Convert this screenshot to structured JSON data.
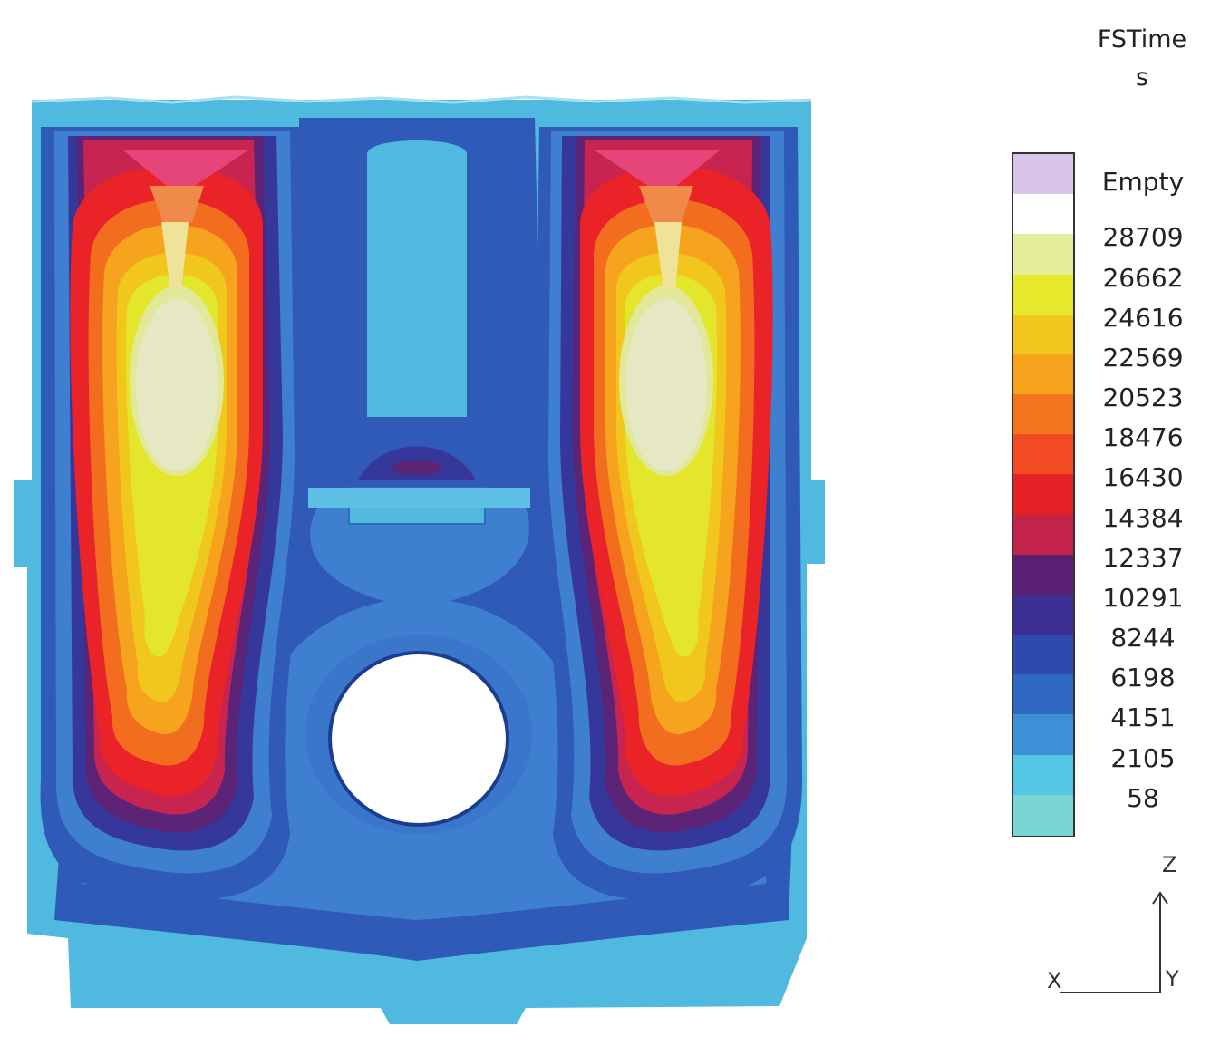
{
  "legend": {
    "title": "FSTime",
    "unit": "s",
    "empty_label": "Empty",
    "values": [
      "28709",
      "26662",
      "24616",
      "22569",
      "20523",
      "18476",
      "16430",
      "14384",
      "12337",
      "10291",
      "8244",
      "6198",
      "4151",
      "2105",
      "58"
    ],
    "colors": [
      "#d9c4ea",
      "#ffffff",
      "#e6ed9a",
      "#e6e82c",
      "#f1c71d",
      "#f6a21d",
      "#f4751e",
      "#f24a22",
      "#e42226",
      "#c3224a",
      "#5a2073",
      "#3b2f94",
      "#2e4aad",
      "#2f68c0",
      "#3d8fd6",
      "#54c7e4",
      "#7ad6d2"
    ]
  },
  "triad": {
    "z": "Z",
    "x": "X",
    "y": "Y"
  },
  "palette": {
    "outer": "#4fb9df",
    "dark_blue": "#2f5ab8",
    "mid_blue": "#3f7fcf",
    "navy": "#36379a",
    "purple": "#5b2476",
    "crimson": "#c7244f",
    "red": "#e92327",
    "orange_red": "#f36d1f",
    "orange": "#f6a31d",
    "gold": "#f1c71d",
    "yellow": "#e4e62b",
    "pale_yellow": "#e2e89a",
    "core": "#e6e8c4"
  }
}
